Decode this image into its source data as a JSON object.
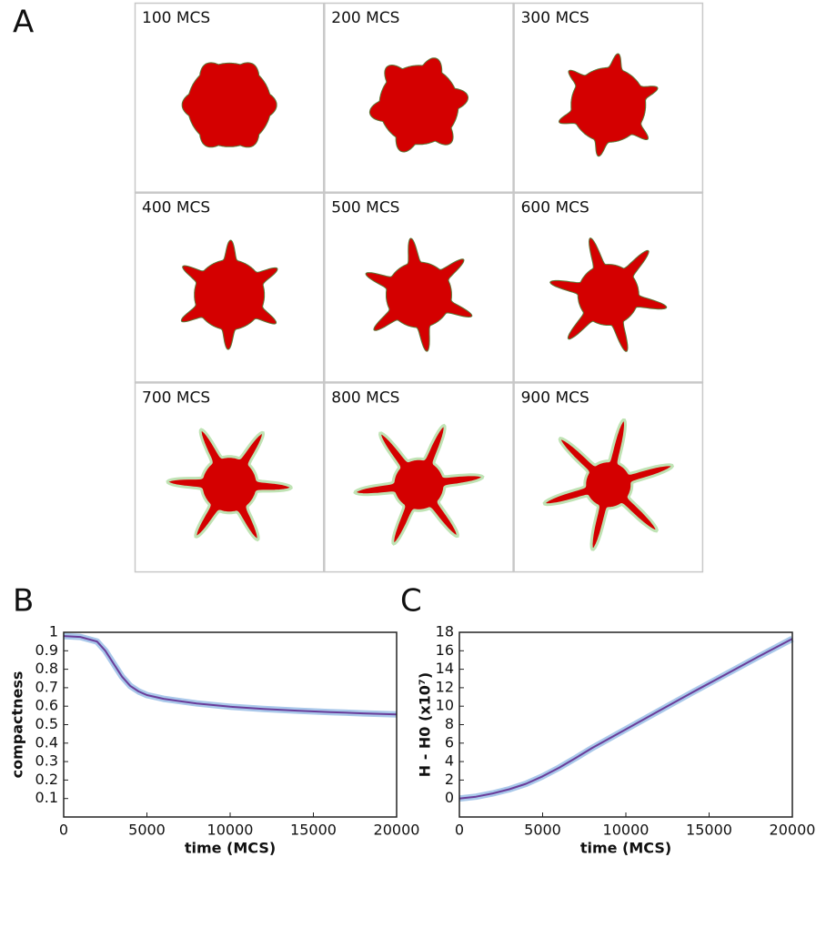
{
  "panel_a": {
    "label": "A",
    "tiles": [
      "100 MCS",
      "200 MCS",
      "300 MCS",
      "400 MCS",
      "500 MCS",
      "600 MCS",
      "700 MCS",
      "800 MCS",
      "900 MCS"
    ]
  },
  "chart_data": [
    {
      "type": "line",
      "label": "B",
      "x_label": "time (MCS)",
      "y_label": "compactness",
      "xlim": [
        0,
        20000
      ],
      "xticks": [
        0,
        5000,
        10000,
        15000,
        20000
      ],
      "ylim": [
        0,
        1
      ],
      "yticks": [
        0.1,
        0.2,
        0.3,
        0.4,
        0.5,
        0.6,
        0.7,
        0.8,
        0.9,
        1
      ],
      "band_color": "#a9c8ea",
      "series": [
        {
          "color": "#6a3d9a",
          "x": [
            0,
            1000,
            2000,
            2500,
            3000,
            3500,
            4000,
            4500,
            5000,
            6000,
            7000,
            8000,
            10000,
            12000,
            14000,
            16000,
            18000,
            20000
          ],
          "values": [
            0.98,
            0.975,
            0.95,
            0.9,
            0.83,
            0.76,
            0.71,
            0.68,
            0.66,
            0.64,
            0.627,
            0.615,
            0.597,
            0.585,
            0.576,
            0.568,
            0.561,
            0.555
          ]
        }
      ]
    },
    {
      "type": "line",
      "label": "C",
      "x_label": "time (MCS)",
      "y_label": "H - H0 (x10⁷)",
      "xlim": [
        0,
        20000
      ],
      "xticks": [
        0,
        5000,
        10000,
        15000,
        20000
      ],
      "ylim": [
        -2,
        18
      ],
      "yticks": [
        0,
        2,
        4,
        6,
        8,
        10,
        12,
        14,
        16,
        18
      ],
      "band_color": "#a9c8ea",
      "series": [
        {
          "color": "#6a3d9a",
          "x": [
            0,
            1000,
            2000,
            3000,
            4000,
            5000,
            6000,
            7000,
            8000,
            10000,
            12000,
            14000,
            16000,
            18000,
            20000
          ],
          "values": [
            0,
            0.2,
            0.55,
            1.0,
            1.6,
            2.4,
            3.35,
            4.4,
            5.5,
            7.5,
            9.5,
            11.5,
            13.45,
            15.4,
            17.3
          ]
        }
      ]
    }
  ]
}
